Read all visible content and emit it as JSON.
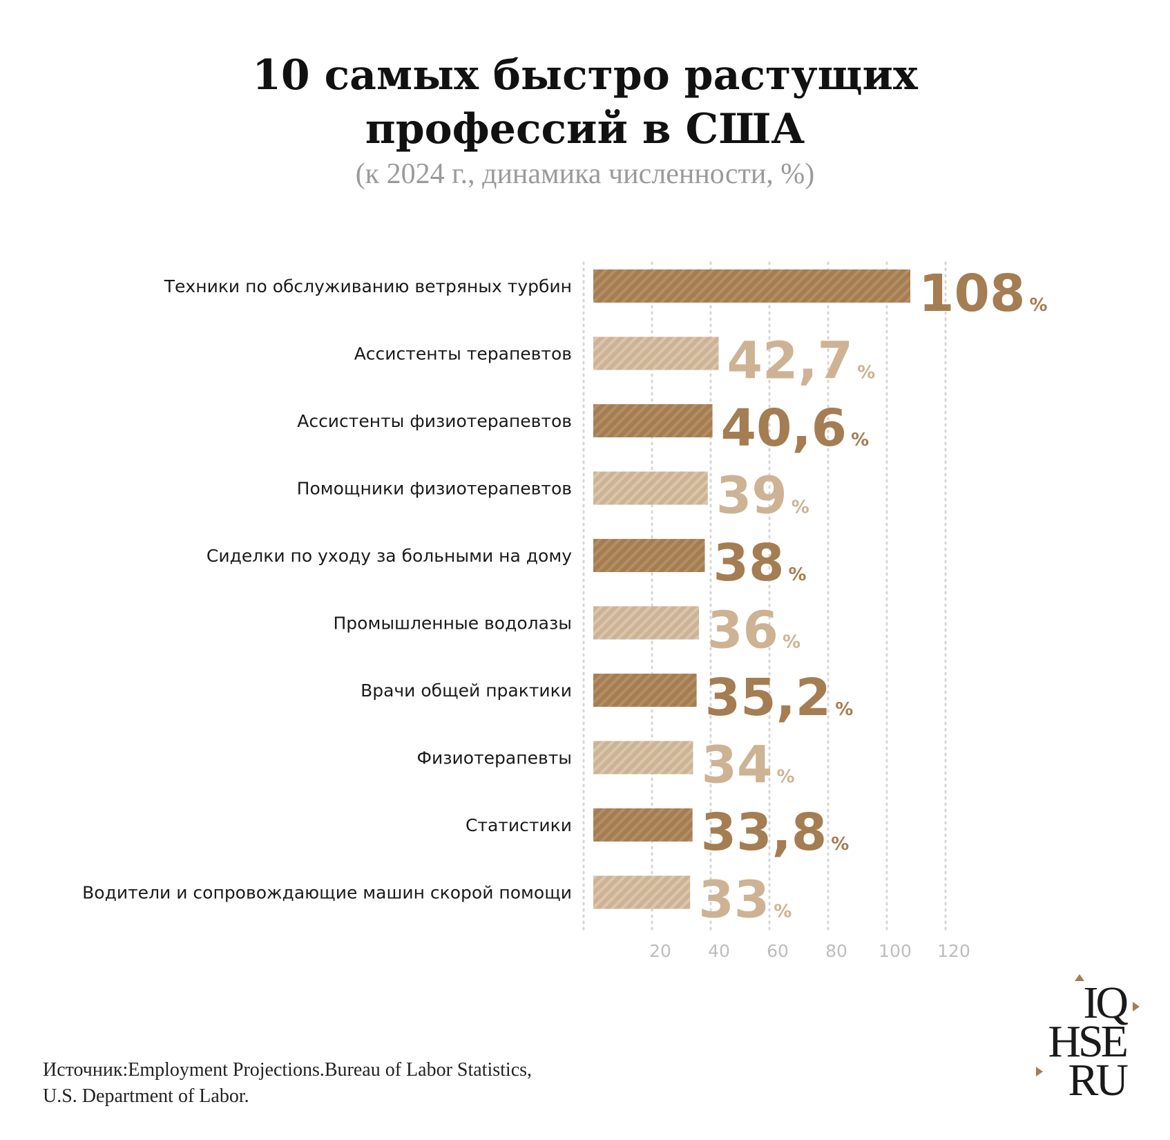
{
  "chart_data": {
    "type": "bar",
    "orientation": "horizontal",
    "title": "10 самых быстро растущих профессий в США",
    "title_lines": [
      "10 самых быстро растущих",
      "профессий в США"
    ],
    "subtitle": "(к 2024 г., динамика численности, %)",
    "categories": [
      "Техники по обслуживанию ветряных турбин",
      "Ассистенты терапевтов",
      "Ассистенты физиотерапевтов",
      "Помощники физиотерапевтов",
      "Сиделки по уходу за больными на дому",
      "Промышленные водолазы",
      "Врачи общей практики",
      "Физиотерапевты",
      "Статистики",
      "Водители и сопровождающие машин скорой помощи"
    ],
    "values": [
      108,
      42.7,
      40.6,
      39,
      38,
      36,
      35.2,
      34,
      33.8,
      33
    ],
    "value_labels": [
      "108",
      "42,7",
      "40,6",
      "39",
      "38",
      "36",
      "35,2",
      "34",
      "33,8",
      "33"
    ],
    "unit": "%",
    "xticks": [
      "20",
      "40",
      "60",
      "80",
      "100",
      "120"
    ],
    "xtick_values": [
      20,
      40,
      60,
      80,
      100,
      120
    ],
    "xlim": [
      0,
      120
    ],
    "grid": true,
    "colors": {
      "dark": "#a57d52",
      "light": "#cdb394",
      "dark_stripe": "#b48e64",
      "light_stripe": "#dac6ad",
      "grid": "#d6d6d6"
    }
  },
  "source": {
    "lines": [
      "Источник:Employment Projections.Bureau of Labor Statistics,",
      "U.S. Department of Labor."
    ]
  },
  "logo": {
    "lines": [
      "IQ",
      "HSE",
      "RU"
    ],
    "accent": "#a57d52"
  }
}
